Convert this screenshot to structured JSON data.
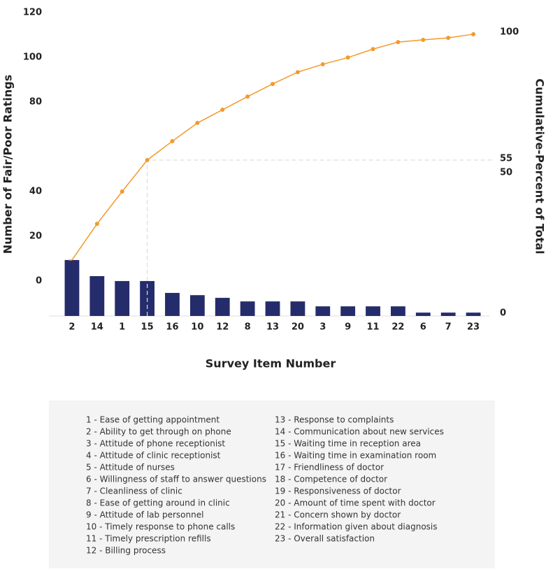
{
  "chart_data": {
    "type": "pareto",
    "y_label": "Number of Fair/Poor Ratings",
    "y2_label": "Cumulative-Percent of Total",
    "x_label": "Survey Item Number",
    "categories": [
      "2",
      "14",
      "1",
      "15",
      "16",
      "10",
      "12",
      "8",
      "13",
      "20",
      "3",
      "9",
      "11",
      "22",
      "6",
      "7",
      "23"
    ],
    "series": [
      {
        "name": "Number of Fair/Poor Ratings",
        "color": "#252c6b",
        "values": [
          9.4,
          2.2,
          0,
          0,
          -5.3,
          -6.3,
          -7.5,
          -9.1,
          -9.1,
          -9.1,
          -11.3,
          -11.3,
          -11.3,
          -11.3,
          -14.1,
          -14.1,
          -14.1
        ]
      },
      {
        "name": "Cumulative-Percent of Total",
        "color": "#f39a2b",
        "axis": "y2",
        "values": [
          18.9,
          31.8,
          43.3,
          54.5,
          61.2,
          67.7,
          72.4,
          77.1,
          81.6,
          85.8,
          88.6,
          91.0,
          94.0,
          96.5,
          97.3,
          98.0,
          99.3
        ]
      }
    ],
    "ylim": [
      -15.6,
      120
    ],
    "yticks": [
      0,
      20,
      40,
      80,
      100,
      120
    ],
    "y2lim": [
      -1,
      107
    ],
    "y2ticks": [
      0,
      50,
      55,
      100
    ],
    "key_items": [
      "1 - Ease of getting appointment",
      "2 - Ability to get through on phone",
      "3 - Attitude of phone receptionist",
      "4 - Attitude of clinic receptionist",
      "5 - Attitude of nurses",
      "6 - Willingness of staff to answer questions",
      "7 - Cleanliness of clinic",
      "8 - Ease of getting around in clinic",
      "9 - Attitude of lab personnel",
      "10 - Timely response to phone calls",
      "11 - Timely prescription refills",
      "12 - Billing process",
      "13 - Response to complaints",
      "14 - Communication about new services",
      "15 - Waiting time in reception area",
      "16 - Waiting time in examination room",
      "17 - Friendliness of doctor",
      "18 - Competence of doctor",
      "19 - Responsiveness of doctor",
      "20 - Amount of time spent with doctor",
      "21 - Concern shown by doctor",
      "22 - Information given about diagnosis",
      "23 - Overall satisfaction"
    ]
  }
}
